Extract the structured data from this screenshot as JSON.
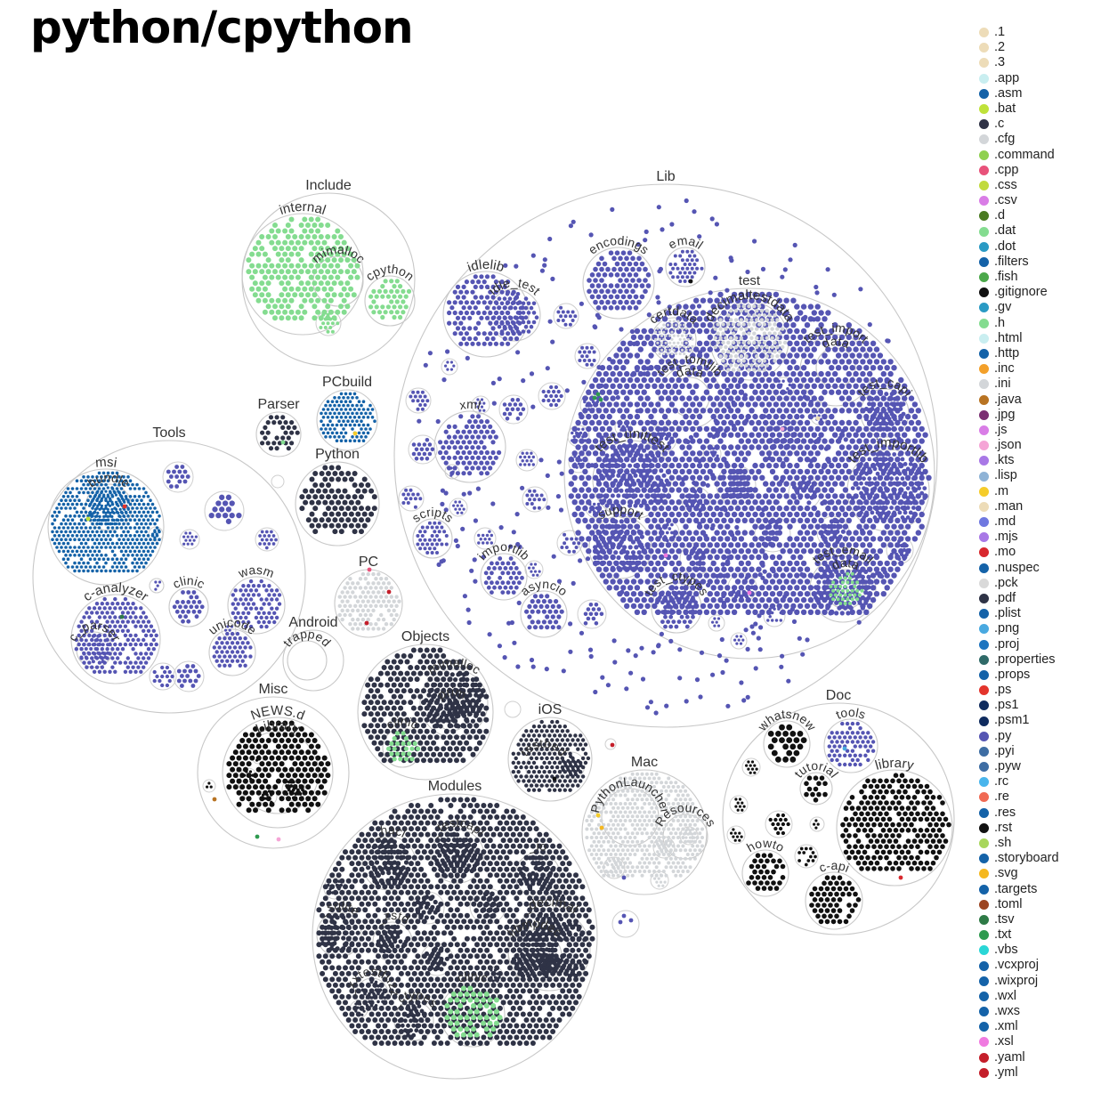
{
  "title": "python/cpython",
  "legend": [
    {
      "ext": ".1",
      "color": "#eddcb8"
    },
    {
      "ext": ".2",
      "color": "#eddcb8"
    },
    {
      "ext": ".3",
      "color": "#eddcb8"
    },
    {
      "ext": ".app",
      "color": "#c9eef0"
    },
    {
      "ext": ".asm",
      "color": "#1462a8"
    },
    {
      "ext": ".bat",
      "color": "#bfe23a"
    },
    {
      "ext": ".c",
      "color": "#2f3346"
    },
    {
      "ext": ".cfg",
      "color": "#d3d6d9"
    },
    {
      "ext": ".command",
      "color": "#8fd04f"
    },
    {
      "ext": ".cpp",
      "color": "#e8527a"
    },
    {
      "ext": ".css",
      "color": "#c1da3e"
    },
    {
      "ext": ".csv",
      "color": "#d97de6"
    },
    {
      "ext": ".d",
      "color": "#4a7a22"
    },
    {
      "ext": ".dat",
      "color": "#84dc90"
    },
    {
      "ext": ".dot",
      "color": "#2a9ac4"
    },
    {
      "ext": ".filters",
      "color": "#1462a8"
    },
    {
      "ext": ".fish",
      "color": "#4ba84a"
    },
    {
      "ext": ".gitignore",
      "color": "#111111"
    },
    {
      "ext": ".gv",
      "color": "#2a9ac4"
    },
    {
      "ext": ".h",
      "color": "#84dc90"
    },
    {
      "ext": ".html",
      "color": "#c9eef0"
    },
    {
      "ext": ".http",
      "color": "#1462a8"
    },
    {
      "ext": ".inc",
      "color": "#f3a02a"
    },
    {
      "ext": ".ini",
      "color": "#d3d6d9"
    },
    {
      "ext": ".java",
      "color": "#b87322"
    },
    {
      "ext": ".jpg",
      "color": "#7b2f72"
    },
    {
      "ext": ".js",
      "color": "#d97de6"
    },
    {
      "ext": ".json",
      "color": "#f5a5d6"
    },
    {
      "ext": ".kts",
      "color": "#a878e6"
    },
    {
      "ext": ".lisp",
      "color": "#8fb3d6"
    },
    {
      "ext": ".m",
      "color": "#f5cc2a"
    },
    {
      "ext": ".man",
      "color": "#eddcb8"
    },
    {
      "ext": ".md",
      "color": "#6f78e0"
    },
    {
      "ext": ".mjs",
      "color": "#a878e6"
    },
    {
      "ext": ".mo",
      "color": "#d8282e"
    },
    {
      "ext": ".nuspec",
      "color": "#1462a8"
    },
    {
      "ext": ".pck",
      "color": "#d9d9d9"
    },
    {
      "ext": ".pdf",
      "color": "#2f3346"
    },
    {
      "ext": ".plist",
      "color": "#1462a8"
    },
    {
      "ext": ".png",
      "color": "#49a9e0"
    },
    {
      "ext": ".proj",
      "color": "#1d74bf"
    },
    {
      "ext": ".properties",
      "color": "#2f6a68"
    },
    {
      "ext": ".props",
      "color": "#1462a8"
    },
    {
      "ext": ".ps",
      "color": "#e3342c"
    },
    {
      "ext": ".ps1",
      "color": "#0f2b5e"
    },
    {
      "ext": ".psm1",
      "color": "#0f2b5e"
    },
    {
      "ext": ".py",
      "color": "#5555b3"
    },
    {
      "ext": ".pyi",
      "color": "#3e6da3"
    },
    {
      "ext": ".pyw",
      "color": "#3e6da3"
    },
    {
      "ext": ".rc",
      "color": "#49b5ec"
    },
    {
      "ext": ".re",
      "color": "#f06a54"
    },
    {
      "ext": ".res",
      "color": "#1462a8"
    },
    {
      "ext": ".rst",
      "color": "#111111"
    },
    {
      "ext": ".sh",
      "color": "#a8d65c"
    },
    {
      "ext": ".storyboard",
      "color": "#1462a8"
    },
    {
      "ext": ".svg",
      "color": "#f5b820"
    },
    {
      "ext": ".targets",
      "color": "#1462a8"
    },
    {
      "ext": ".toml",
      "color": "#9c4522"
    },
    {
      "ext": ".tsv",
      "color": "#2e7a46"
    },
    {
      "ext": ".txt",
      "color": "#2e9a4f"
    },
    {
      "ext": ".vbs",
      "color": "#2ad6d6"
    },
    {
      "ext": ".vcxproj",
      "color": "#1462a8"
    },
    {
      "ext": ".wixproj",
      "color": "#1462a8"
    },
    {
      "ext": ".wxl",
      "color": "#1462a8"
    },
    {
      "ext": ".wxs",
      "color": "#1462a8"
    },
    {
      "ext": ".xml",
      "color": "#1462a8"
    },
    {
      "ext": ".xsl",
      "color": "#f07ae0"
    },
    {
      "ext": ".yaml",
      "color": "#c41e2a"
    },
    {
      "ext": ".yml",
      "color": "#c41e2a"
    }
  ],
  "folders": [
    {
      "id": "lib",
      "label": "Lib",
      "fill": "#5555b3"
    },
    {
      "id": "lib-test",
      "label": "test",
      "fill": "#5555b3"
    },
    {
      "id": "lib-idlelib",
      "label": "idlelib",
      "fill": "#5555b3"
    },
    {
      "id": "lib-idle-test",
      "label": "idle_test",
      "fill": "#5555b3"
    },
    {
      "id": "lib-encodings",
      "label": "encodings",
      "fill": "#5555b3"
    },
    {
      "id": "lib-email",
      "label": "email",
      "fill": "#5555b3"
    },
    {
      "id": "lib-xml",
      "label": "xml",
      "fill": "#5555b3"
    },
    {
      "id": "lib-scripts",
      "label": "scripts",
      "fill": "#5555b3"
    },
    {
      "id": "lib-importlib",
      "label": "importlib",
      "fill": "#5555b3"
    },
    {
      "id": "lib-asyncio",
      "label": "asyncio",
      "fill": "#5555b3"
    },
    {
      "id": "test-certdata",
      "label": "certdata",
      "fill": "#d3d6d9"
    },
    {
      "id": "test-decimaltestdata",
      "label": "decimaltestdata",
      "fill": "#d3d6d9"
    },
    {
      "id": "test-import",
      "label": "test_import",
      "fill": "#d3d6d9"
    },
    {
      "id": "test-import-data",
      "label": "data",
      "fill": "#d3d6d9"
    },
    {
      "id": "test-tomllib",
      "label": "test_tomllib",
      "fill": "#d3d6d9"
    },
    {
      "id": "test-tomllib-data",
      "label": "data",
      "fill": "#d3d6d9"
    },
    {
      "id": "test-capi",
      "label": "test_capi",
      "fill": "#5555b3"
    },
    {
      "id": "test-importlib",
      "label": "test_importlib",
      "fill": "#5555b3"
    },
    {
      "id": "test-unittest",
      "label": "test_unittest",
      "fill": "#5555b3"
    },
    {
      "id": "test-support",
      "label": "support",
      "fill": "#5555b3"
    },
    {
      "id": "test-email",
      "label": "test_email",
      "fill": "#5555b3"
    },
    {
      "id": "test-email-data",
      "label": "data",
      "fill": "#84dc90"
    },
    {
      "id": "test-ctypes",
      "label": "test_ctypes",
      "fill": "#5555b3"
    },
    {
      "id": "include",
      "label": "Include",
      "fill": "#84dc90"
    },
    {
      "id": "include-internal",
      "label": "internal",
      "fill": "#84dc90"
    },
    {
      "id": "include-mimalloc",
      "label": "mimalloc",
      "fill": "#84dc90"
    },
    {
      "id": "include-cpython",
      "label": "cpython",
      "fill": "#84dc90"
    },
    {
      "id": "pcbuild",
      "label": "PCbuild",
      "fill": "#1462a8"
    },
    {
      "id": "parser",
      "label": "Parser",
      "fill": "#2f3346"
    },
    {
      "id": "python",
      "label": "Python",
      "fill": "#2f3346"
    },
    {
      "id": "pc",
      "label": "PC",
      "fill": "#d3d6d9"
    },
    {
      "id": "tools",
      "label": "Tools",
      "fill": "#5555b3"
    },
    {
      "id": "tools-msi",
      "label": "msi",
      "fill": "#1462a8"
    },
    {
      "id": "tools-bundle",
      "label": "bundle",
      "fill": "#1462a8"
    },
    {
      "id": "tools-c-analyzer",
      "label": "c-analyzer",
      "fill": "#5555b3"
    },
    {
      "id": "tools-c-parser",
      "label": "c_parser",
      "fill": "#5555b3"
    },
    {
      "id": "tools-clinic",
      "label": "clinic",
      "fill": "#5555b3"
    },
    {
      "id": "tools-wasm",
      "label": "wasm",
      "fill": "#5555b3"
    },
    {
      "id": "tools-unicode",
      "label": "unicode",
      "fill": "#5555b3"
    },
    {
      "id": "android",
      "label": "Android",
      "fill": "#d3d6d9"
    },
    {
      "id": "android-trapped",
      "label": "trapped",
      "fill": "#d3d6d9"
    },
    {
      "id": "objects",
      "label": "Objects",
      "fill": "#2f3346"
    },
    {
      "id": "objects-mimalloc",
      "label": "mimalloc",
      "fill": "#2f3346"
    },
    {
      "id": "objects-prim",
      "label": "prim",
      "fill": "#2f3346"
    },
    {
      "id": "objects-clinic",
      "label": "clinic",
      "fill": "#84dc90"
    },
    {
      "id": "misc",
      "label": "Misc",
      "fill": "#111111"
    },
    {
      "id": "misc-news-d",
      "label": "NEWS.d",
      "fill": "#111111"
    },
    {
      "id": "misc-library",
      "label": "Library",
      "fill": "#111111"
    },
    {
      "id": "ios",
      "label": "iOS",
      "fill": "#2f3346"
    },
    {
      "id": "ios-testbed",
      "label": "testbed",
      "fill": "#2f3346"
    },
    {
      "id": "mac",
      "label": "Mac",
      "fill": "#d3d6d9"
    },
    {
      "id": "mac-pythonlauncher",
      "label": "PythonLauncher",
      "fill": "#d3d6d9"
    },
    {
      "id": "mac-resources",
      "label": "Resources",
      "fill": "#d3d6d9"
    },
    {
      "id": "modules",
      "label": "Modules",
      "fill": "#2f3346"
    },
    {
      "id": "modules-hacl",
      "label": "_hacl",
      "fill": "#2f3346"
    },
    {
      "id": "modules-testcapi",
      "label": "_testcapi",
      "fill": "#2f3346"
    },
    {
      "id": "modules-io",
      "label": "_io",
      "fill": "#2f3346"
    },
    {
      "id": "modules-sqlite",
      "label": "_sqlite",
      "fill": "#2f3346"
    },
    {
      "id": "modules-zstd",
      "label": "_zstd",
      "fill": "#2f3346"
    },
    {
      "id": "modules-decimal",
      "label": "_decimal",
      "fill": "#2f3346"
    },
    {
      "id": "modules-libmpdec",
      "label": "libmpdec",
      "fill": "#2f3346"
    },
    {
      "id": "modules-xxtestfuzz",
      "label": "_xxtestfuzz",
      "fill": "#2f3346"
    },
    {
      "id": "modules-clinic",
      "label": "clinic",
      "fill": "#84dc90"
    },
    {
      "id": "modules-ctypes",
      "label": "_ctypes",
      "fill": "#2f3346"
    },
    {
      "id": "doc",
      "label": "Doc",
      "fill": "#111111"
    },
    {
      "id": "doc-whatsnew",
      "label": "whatsnew",
      "fill": "#111111"
    },
    {
      "id": "doc-tools",
      "label": "tools",
      "fill": "#5555b3"
    },
    {
      "id": "doc-tutorial",
      "label": "tutorial",
      "fill": "#111111"
    },
    {
      "id": "doc-library",
      "label": "library",
      "fill": "#111111"
    },
    {
      "id": "doc-howto",
      "label": "howto",
      "fill": "#111111"
    },
    {
      "id": "doc-c-api",
      "label": "c-api",
      "fill": "#111111"
    }
  ]
}
